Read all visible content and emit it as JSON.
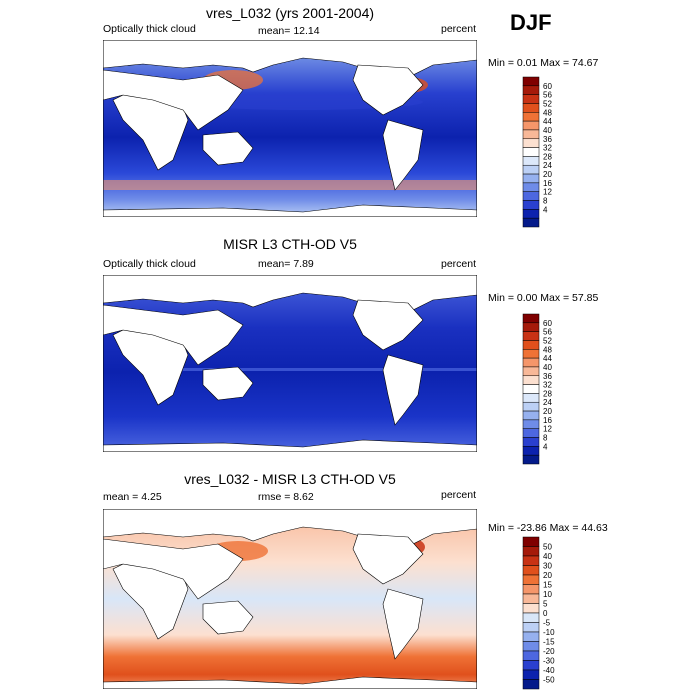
{
  "season": "DJF",
  "panels": [
    {
      "title": "vres_L032 (yrs 2001-2004)",
      "left_label": "Optically thick cloud",
      "center_label": "mean=  12.14",
      "right_label": "percent",
      "minmax": "Min =   0.01 Max =  74.67",
      "colorbar": {
        "labels": [
          "60",
          "56",
          "52",
          "48",
          "44",
          "40",
          "36",
          "32",
          "28",
          "24",
          "20",
          "16",
          "12",
          "8",
          "4"
        ],
        "colors": [
          "#7f0000",
          "#a51a0a",
          "#c83214",
          "#e0501c",
          "#ef7236",
          "#f5966a",
          "#f8b898",
          "#fce0d0",
          "#ffffff",
          "#dce8fa",
          "#bcd0f5",
          "#96b1ef",
          "#6f8ce8",
          "#4d67e0",
          "#2a40cf",
          "#0c22ae",
          "#041a8a"
        ],
        "tick_values": [
          4,
          8,
          12,
          16,
          20,
          24,
          28,
          32,
          36,
          40,
          44,
          48,
          52,
          56,
          60
        ]
      }
    },
    {
      "title": "MISR L3 CTH-OD V5",
      "left_label": "Optically thick cloud",
      "center_label": "mean=   7.89",
      "right_label": "percent",
      "minmax": "Min =   0.00 Max =  57.85",
      "colorbar": {
        "labels": [
          "60",
          "56",
          "52",
          "48",
          "44",
          "40",
          "36",
          "32",
          "28",
          "24",
          "20",
          "16",
          "12",
          "8",
          "4"
        ],
        "colors": [
          "#7f0000",
          "#a51a0a",
          "#c83214",
          "#e0501c",
          "#ef7236",
          "#f5966a",
          "#f8b898",
          "#fce0d0",
          "#ffffff",
          "#dce8fa",
          "#bcd0f5",
          "#96b1ef",
          "#6f8ce8",
          "#4d67e0",
          "#2a40cf",
          "#0c22ae",
          "#041a8a"
        ],
        "tick_values": [
          4,
          8,
          12,
          16,
          20,
          24,
          28,
          32,
          36,
          40,
          44,
          48,
          52,
          56,
          60
        ]
      }
    },
    {
      "title": "vres_L032 - MISR L3 CTH-OD V5",
      "left_label": "mean =   4.25",
      "center_label": "rmse =   8.62",
      "right_label": "percent",
      "minmax": "Min = -23.86 Max =  44.63",
      "colorbar": {
        "labels": [
          "50",
          "40",
          "30",
          "20",
          "15",
          "10",
          "5",
          "0",
          "-5",
          "-10",
          "-15",
          "-20",
          "-30",
          "-40",
          "-50"
        ],
        "colors": [
          "#7f0000",
          "#a51a0a",
          "#c83214",
          "#e0501c",
          "#ef7236",
          "#f5966a",
          "#f8b898",
          "#fce0d0",
          "#d8e6f8",
          "#bcd0f5",
          "#96b1ef",
          "#6f8ce8",
          "#4d67e0",
          "#2a40cf",
          "#0c22ae",
          "#041a8a"
        ],
        "tick_values": [
          -50,
          -40,
          -30,
          -20,
          -15,
          -10,
          -5,
          0,
          5,
          10,
          15,
          20,
          30,
          40,
          50
        ]
      }
    }
  ]
}
